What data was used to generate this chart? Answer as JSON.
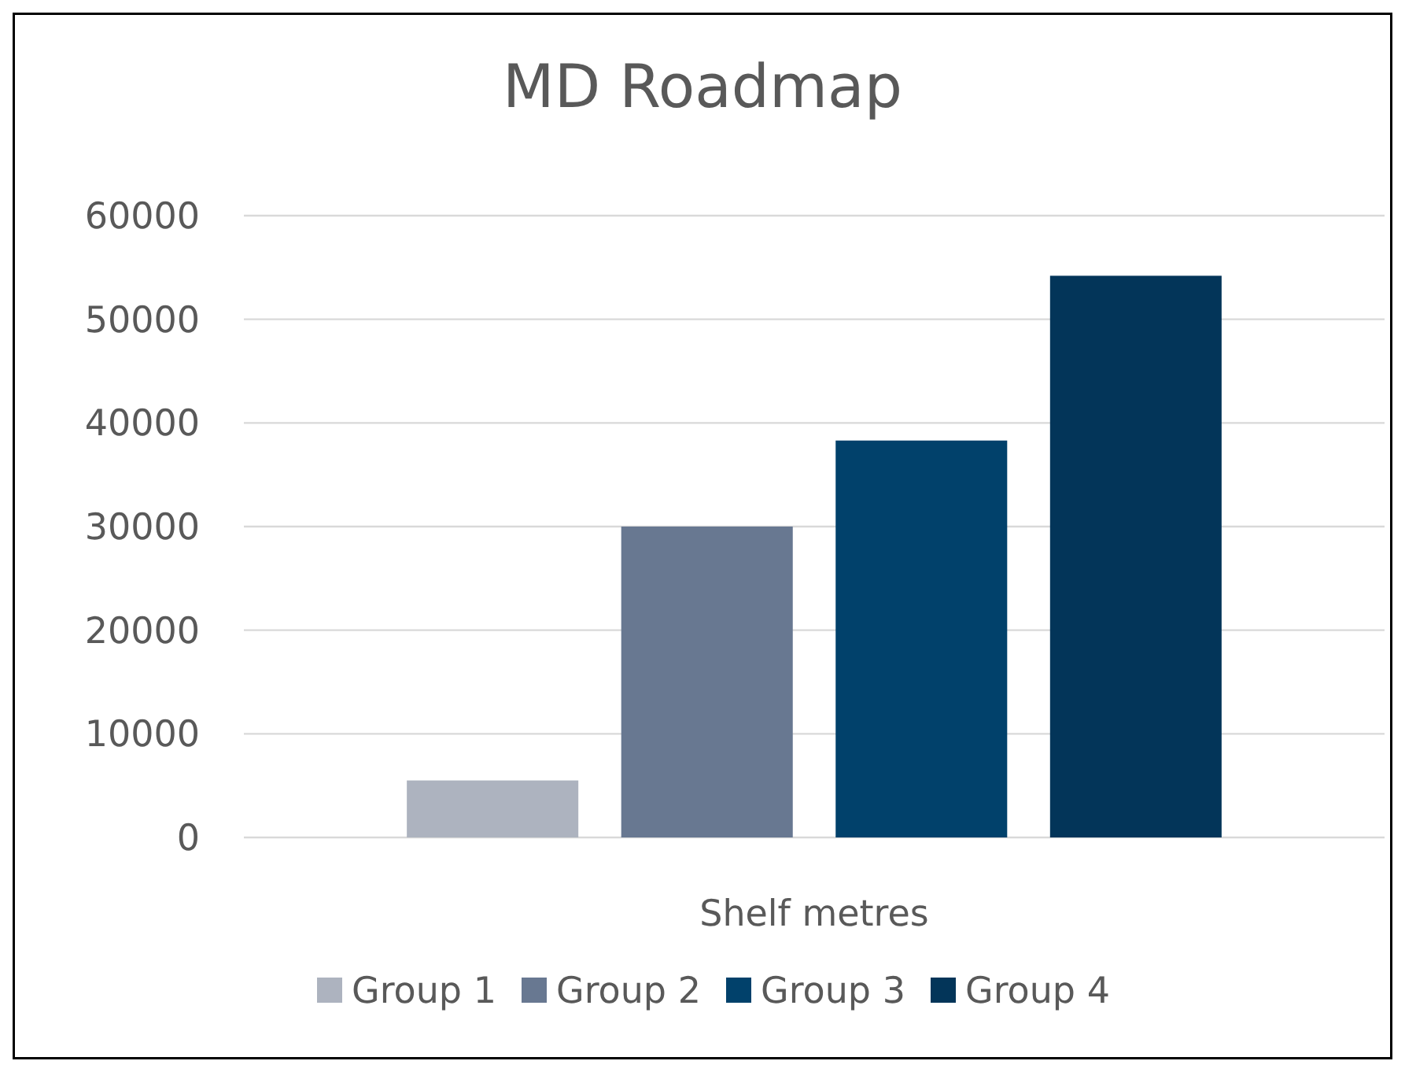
{
  "chart_data": {
    "type": "bar",
    "title": "MD Roadmap",
    "categories": [
      "Shelf metres"
    ],
    "series": [
      {
        "name": "Group 1",
        "color": "#adb3bf",
        "values": [
          5500
        ]
      },
      {
        "name": "Group 2",
        "color": "#687891",
        "values": [
          30000
        ]
      },
      {
        "name": "Group 3",
        "color": "#01416b",
        "values": [
          38300
        ]
      },
      {
        "name": "Group 4",
        "color": "#033559",
        "values": [
          54200
        ]
      }
    ],
    "ylim": [
      0,
      60000
    ],
    "yticks": [
      0,
      10000,
      20000,
      30000,
      40000,
      50000,
      60000
    ],
    "grid": "y",
    "legend": "bottom"
  }
}
